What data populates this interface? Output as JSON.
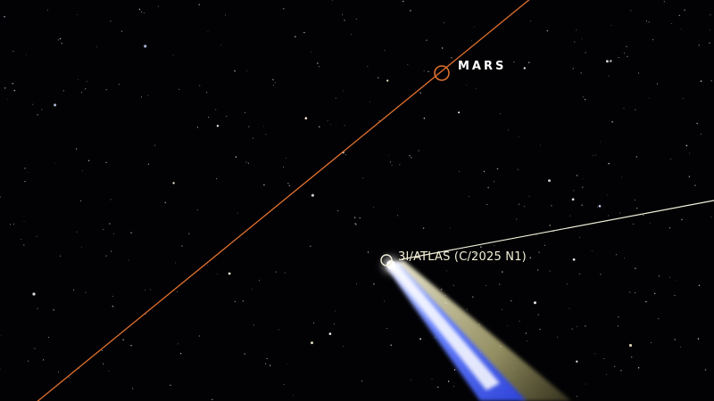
{
  "scene": {
    "mars": {
      "label": "MARS",
      "orbit_color": "#e0712e"
    },
    "comet": {
      "label": "3I/ATLAS (C/2025 N1)",
      "trajectory_color": "#f4f1dc",
      "tail_colors": [
        "#ffffff",
        "#3d5cff",
        "#fff7b0"
      ]
    },
    "background_color": "#020204"
  }
}
